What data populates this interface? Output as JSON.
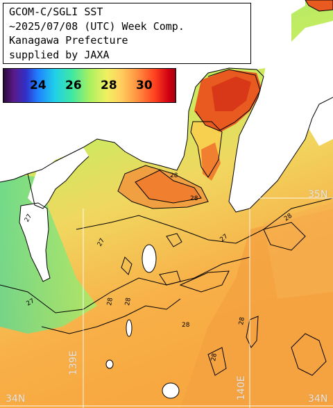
{
  "title": {
    "line1": "GCOM-C/SGLI SST",
    "line2": "~2025/07/08 (UTC) Week Comp.",
    "line3": "Kanagawa Prefecture",
    "line4": "supplied by JAXA"
  },
  "colorbar": {
    "ticks": [
      "24",
      "26",
      "28",
      "30"
    ]
  },
  "grid_labels": {
    "lon_139": "139E",
    "lon_140": "140E",
    "lat_34_left": "34N",
    "lat_34_right": "34N",
    "lat_35": "35N"
  },
  "contour_labels": [
    "27",
    "28",
    "27",
    "28",
    "27",
    "28",
    "28",
    "27",
    "28",
    "28",
    "28",
    "28"
  ],
  "colors": {
    "land": "#ffffff",
    "cloud": "#ffffff",
    "contour": "#000000",
    "grid": "#ffffff"
  }
}
